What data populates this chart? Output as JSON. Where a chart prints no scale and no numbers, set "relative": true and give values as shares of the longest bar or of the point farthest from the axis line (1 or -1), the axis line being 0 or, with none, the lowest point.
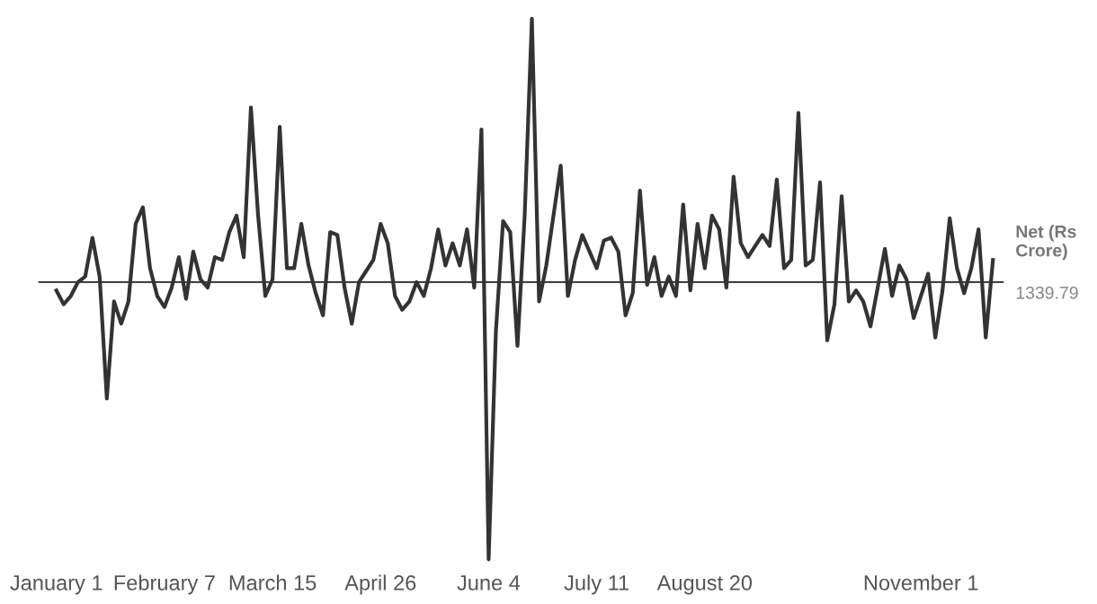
{
  "chart_data": {
    "type": "line",
    "relative": true,
    "marker": "none",
    "line_style": "solid",
    "grid": false,
    "legend": false,
    "categories": [
      "January 1",
      null,
      null,
      null,
      null,
      null,
      null,
      null,
      null,
      null,
      null,
      null,
      null,
      null,
      null,
      "February 7",
      null,
      null,
      null,
      null,
      null,
      null,
      null,
      null,
      null,
      null,
      null,
      null,
      null,
      null,
      "March 15",
      null,
      null,
      null,
      null,
      null,
      null,
      null,
      null,
      null,
      null,
      null,
      null,
      null,
      null,
      "April 26",
      null,
      null,
      null,
      null,
      null,
      null,
      null,
      null,
      null,
      null,
      null,
      null,
      null,
      null,
      "June 4",
      null,
      null,
      null,
      null,
      null,
      null,
      null,
      null,
      null,
      null,
      null,
      null,
      null,
      null,
      "July 11",
      null,
      null,
      null,
      null,
      null,
      null,
      null,
      null,
      null,
      null,
      null,
      null,
      null,
      null,
      "August 20",
      null,
      null,
      null,
      null,
      null,
      null,
      null,
      null,
      null,
      null,
      null,
      null,
      null,
      null,
      null,
      null,
      null,
      null,
      null,
      null,
      null,
      null,
      null,
      null,
      null,
      null,
      null,
      null,
      null,
      "November 1",
      null,
      null,
      null,
      null,
      null,
      null,
      null,
      null,
      null,
      null
    ],
    "series": [
      {
        "name": "Net (Rs Crore)",
        "color": "#333333",
        "values": [
          -0.03,
          -0.08,
          -0.05,
          0.0,
          0.02,
          0.16,
          0.02,
          -0.42,
          -0.07,
          -0.15,
          -0.07,
          0.21,
          0.27,
          0.05,
          -0.05,
          -0.09,
          -0.02,
          0.09,
          -0.06,
          0.11,
          0.01,
          -0.02,
          0.09,
          0.08,
          0.18,
          0.24,
          0.09,
          0.63,
          0.24,
          -0.05,
          0.01,
          0.56,
          0.05,
          0.05,
          0.21,
          0.06,
          -0.04,
          -0.12,
          0.18,
          0.17,
          -0.02,
          -0.15,
          0.0,
          0.04,
          0.08,
          0.21,
          0.14,
          -0.05,
          -0.1,
          -0.07,
          0.0,
          -0.05,
          0.05,
          0.19,
          0.06,
          0.14,
          0.06,
          0.19,
          -0.02,
          0.55,
          -1,
          -0.18,
          0.22,
          0.18,
          -0.23,
          0.24,
          0.95,
          -0.07,
          0.06,
          0.24,
          0.42,
          -0.05,
          0.08,
          0.17,
          0.11,
          0.05,
          0.15,
          0.16,
          0.11,
          -0.12,
          -0.04,
          0.33,
          -0.01,
          0.09,
          -0.05,
          0.02,
          -0.05,
          0.28,
          -0.03,
          0.21,
          0.05,
          0.24,
          0.19,
          -0.02,
          0.38,
          0.14,
          0.09,
          0.13,
          0.17,
          0.13,
          0.37,
          0.05,
          0.08,
          0.61,
          0.06,
          0.08,
          0.36,
          -0.21,
          -0.08,
          0.31,
          -0.07,
          -0.03,
          -0.07,
          -0.16,
          -0.02,
          0.12,
          -0.05,
          0.06,
          0.01,
          -0.13,
          -0.05,
          0.03,
          -0.2,
          -0.03,
          0.23,
          0.05,
          -0.04,
          0.05,
          0.19,
          -0.2,
          0.08
        ]
      }
    ],
    "annotations": [
      "1339.79"
    ]
  }
}
